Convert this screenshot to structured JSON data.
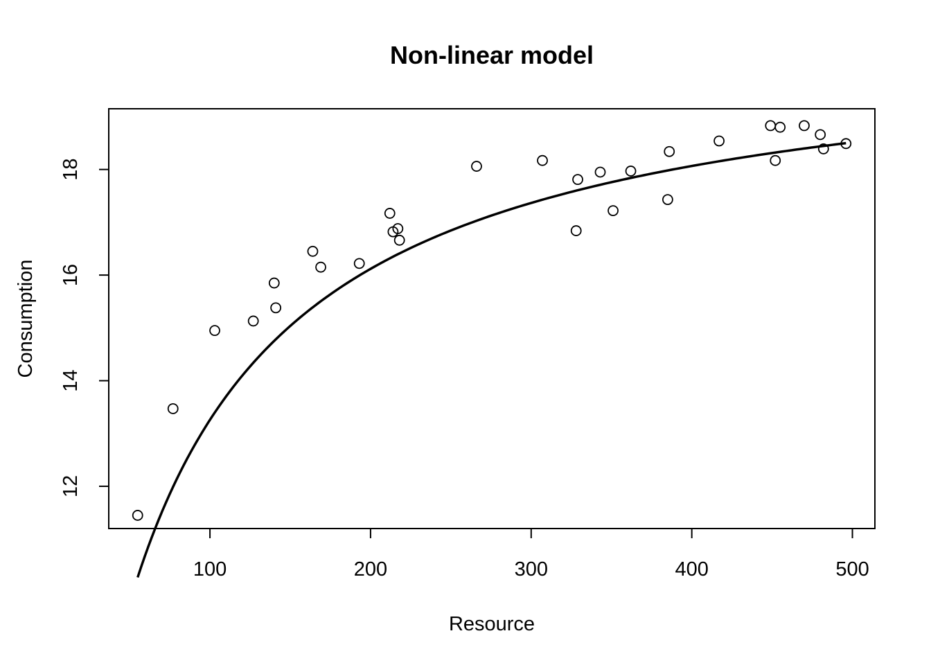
{
  "chart_data": {
    "type": "scatter",
    "title": "Non-linear model",
    "xlabel": "Resource",
    "ylabel": "Consumption",
    "xlim": [
      37,
      514
    ],
    "ylim": [
      11.2,
      19.15
    ],
    "xticks": [
      100,
      200,
      300,
      400,
      500
    ],
    "yticks": [
      12,
      14,
      16,
      18
    ],
    "grid": false,
    "legend": "none",
    "series": [
      {
        "kind": "points",
        "x": [
          55,
          77,
          103,
          127,
          140,
          141,
          164,
          169,
          193,
          212,
          214,
          217,
          218,
          266,
          307,
          328,
          329,
          343,
          351,
          362,
          385,
          386,
          417,
          449,
          452,
          455,
          470,
          480,
          482,
          496
        ],
        "y": [
          11.45,
          13.47,
          14.95,
          15.13,
          15.85,
          15.38,
          16.45,
          16.15,
          16.22,
          17.17,
          16.82,
          16.88,
          16.66,
          18.06,
          18.17,
          16.84,
          17.81,
          17.95,
          17.22,
          17.97,
          17.43,
          18.34,
          18.54,
          18.83,
          18.17,
          18.8,
          18.83,
          18.66,
          18.39,
          18.49
        ]
      },
      {
        "kind": "fitted-curve",
        "model": "a*x/(b+x)",
        "params": {
          "a": 20.55,
          "b": 55.0
        },
        "x_range": [
          55,
          496
        ]
      }
    ]
  }
}
